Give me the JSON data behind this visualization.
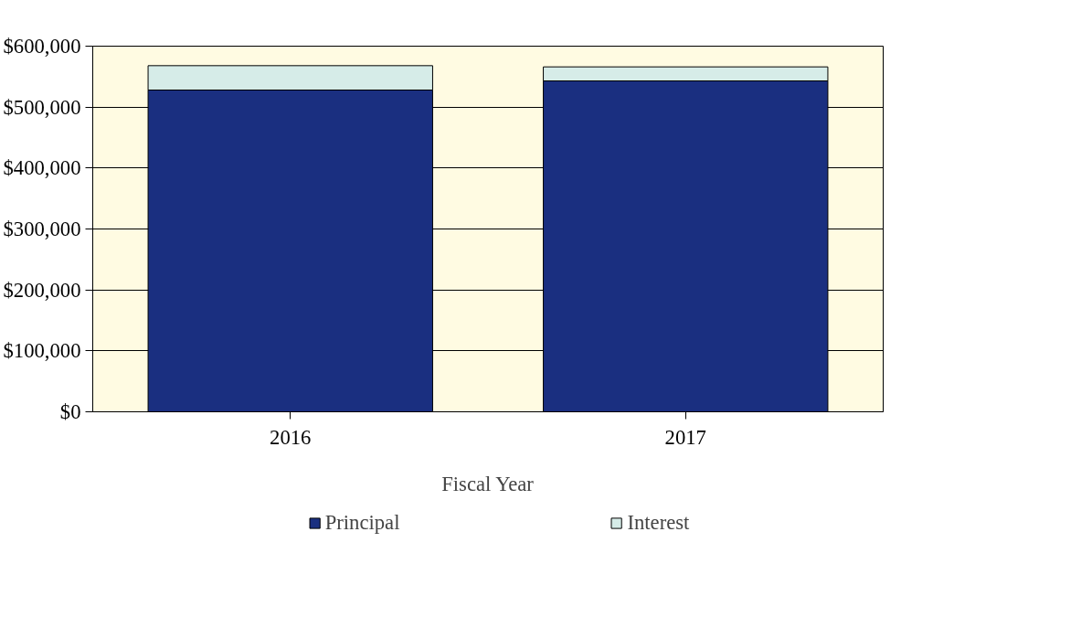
{
  "chart_data": {
    "type": "bar",
    "stacked": true,
    "xlabel": "Fiscal Year",
    "categories": [
      "2016",
      "2017"
    ],
    "series": [
      {
        "name": "Principal",
        "color": "#1a2f80",
        "values": [
          528000,
          543000
        ]
      },
      {
        "name": "Interest",
        "color": "#d6ece8",
        "values": [
          40000,
          23000
        ]
      }
    ],
    "ylim": [
      0,
      600000
    ],
    "yticks": [
      {
        "value": 0,
        "label": "$0"
      },
      {
        "value": 100000,
        "label": "$100,000"
      },
      {
        "value": 200000,
        "label": "$200,000"
      },
      {
        "value": 300000,
        "label": "$300,000"
      },
      {
        "value": 400000,
        "label": "$400,000"
      },
      {
        "value": 500000,
        "label": "$500,000"
      },
      {
        "value": 600000,
        "label": "$600,000"
      }
    ],
    "grid": "y",
    "legend": "bottom"
  }
}
